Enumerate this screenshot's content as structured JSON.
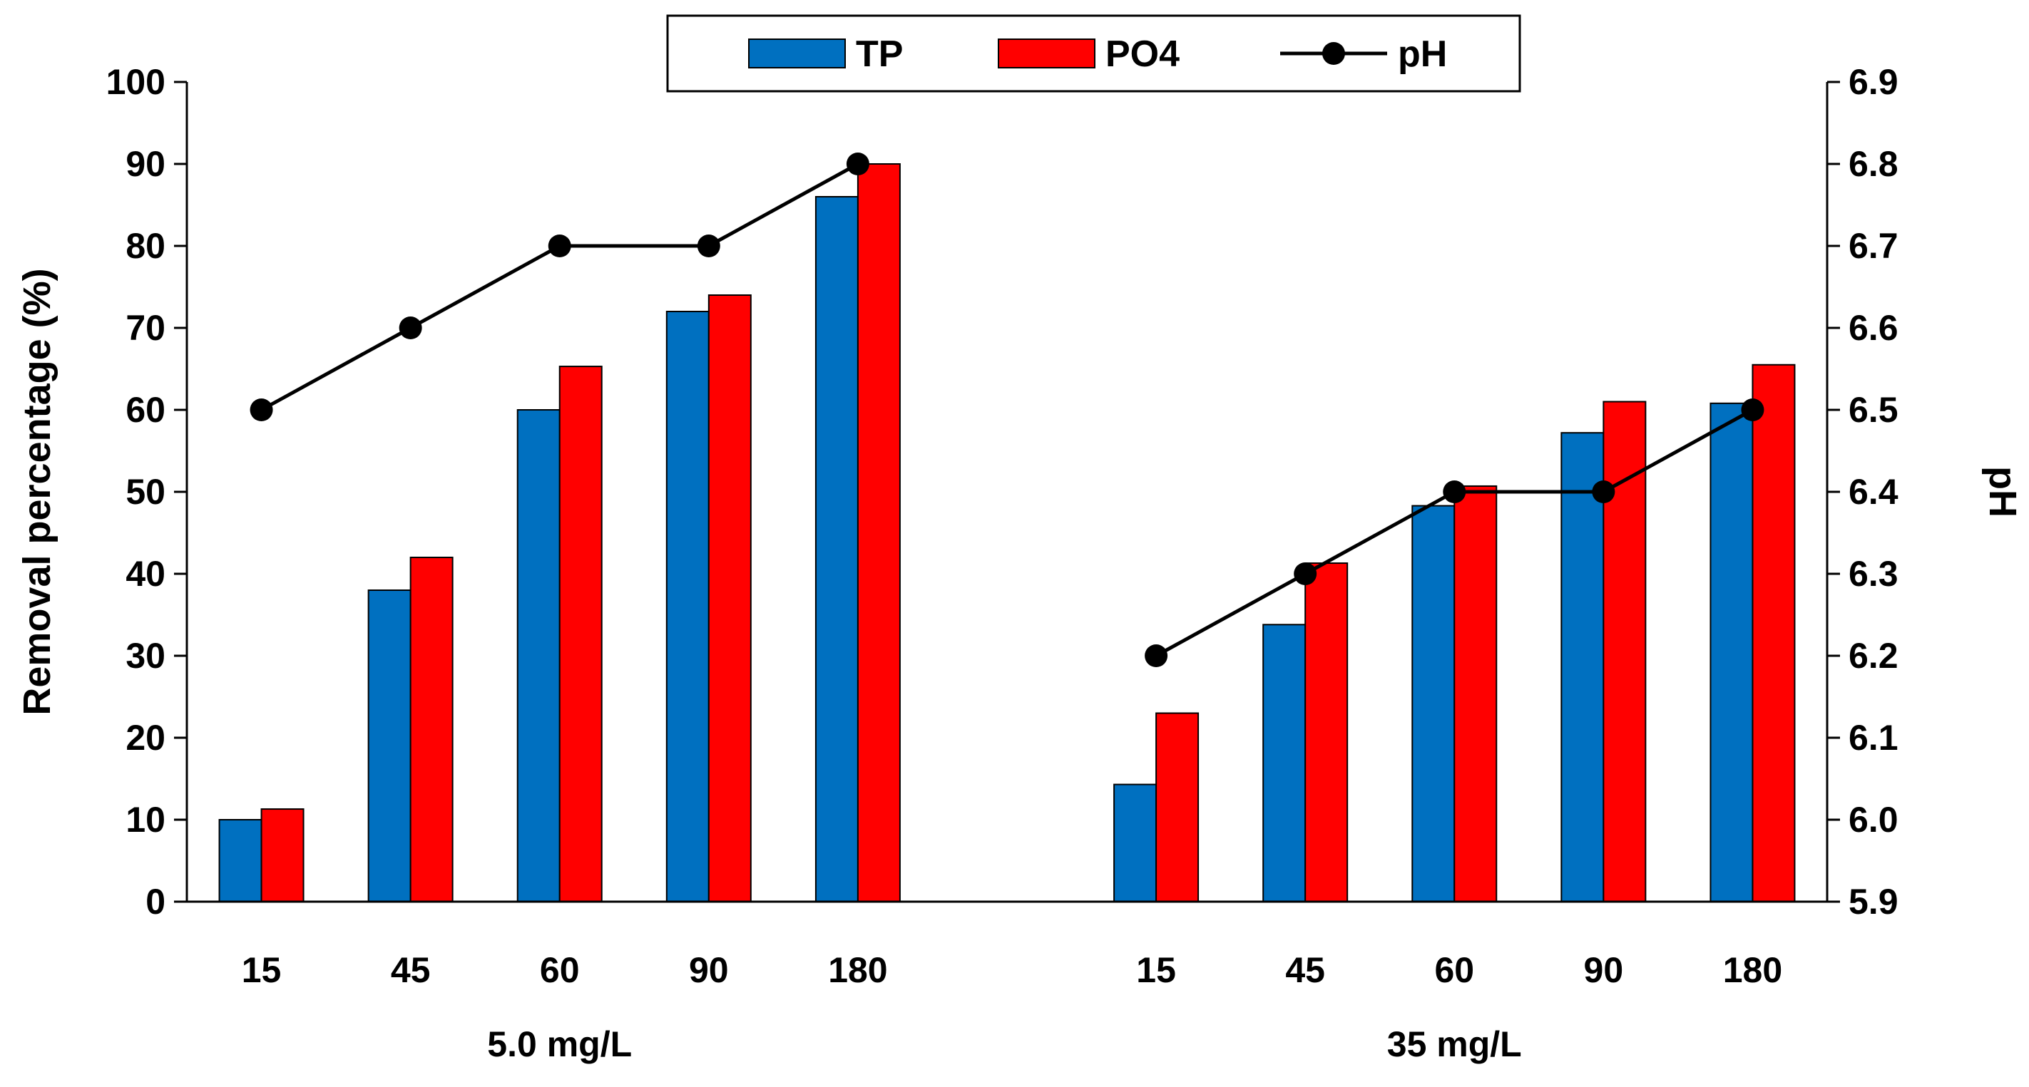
{
  "chart_data": {
    "type": "bar",
    "title": "",
    "ylabel": "Removal percentage (%)",
    "y2label": "pH",
    "ylim": [
      0,
      100
    ],
    "y2lim": [
      5.9,
      6.9
    ],
    "yticks": [
      0,
      10,
      20,
      30,
      40,
      50,
      60,
      70,
      80,
      90,
      100
    ],
    "y2ticks": [
      "5.9",
      "6.0",
      "6.1",
      "6.2",
      "6.3",
      "6.4",
      "6.5",
      "6.6",
      "6.7",
      "6.8",
      "6.9"
    ],
    "groups": [
      {
        "label": "5.0 mg/L",
        "categories": [
          "15",
          "45",
          "60",
          "90",
          "180"
        ],
        "TP": [
          10,
          38,
          60,
          72,
          86
        ],
        "PO4": [
          11.3,
          42,
          65.3,
          74,
          90
        ],
        "pH": [
          6.5,
          6.6,
          6.7,
          6.7,
          6.8
        ]
      },
      {
        "label": "35 mg/L",
        "categories": [
          "15",
          "45",
          "60",
          "90",
          "180"
        ],
        "TP": [
          14.3,
          33.8,
          48.3,
          57.2,
          60.8
        ],
        "PO4": [
          23,
          41.3,
          50.7,
          61,
          65.5
        ],
        "pH": [
          6.2,
          6.3,
          6.4,
          6.4,
          6.5
        ]
      }
    ],
    "legend": [
      {
        "name": "TP",
        "kind": "bar",
        "color": "#0070C0"
      },
      {
        "name": "PO4",
        "kind": "bar",
        "color": "#FF0000"
      },
      {
        "name": "pH",
        "kind": "line-marker",
        "color": "#000000"
      }
    ],
    "legend_position": "top-center",
    "grid": false
  }
}
